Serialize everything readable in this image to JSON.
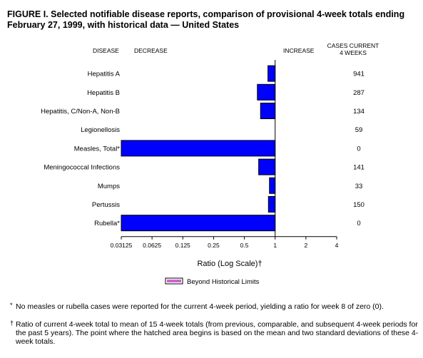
{
  "title": "FIGURE I. Selected notifiable disease reports, comparison of provisional 4-week totals ending February 27, 1999, with historical data — United States",
  "headers": {
    "disease": "DISEASE",
    "decrease": "DECREASE",
    "increase": "INCREASE",
    "cases_line1": "CASES CURRENT",
    "cases_line2": "4 WEEKS"
  },
  "legend": {
    "label": "Beyond Historical Limits",
    "swatch_color": "#cc66cc"
  },
  "footnotes": {
    "star_mark": "*",
    "star": "No measles or rubella cases were reported for the current 4-week period, yielding a ratio for week 8 of zero (0).",
    "dagger_mark": "†",
    "dagger": "Ratio of current 4-week total to mean of 15 4-week totals (from previous, comparable, and subsequent 4-week periods for the past 5 years). The point where the hatched area begins is based on the mean and two standard deviations of these 4-week totals."
  },
  "colors": {
    "bar": "#0000ff",
    "outline": "#000000"
  },
  "chart_data": {
    "type": "bar",
    "orientation": "horizontal",
    "xscale": "log2",
    "xlim": [
      0.03125,
      4
    ],
    "baseline": 1,
    "xlabel": "Ratio (Log Scale)†",
    "xticks": [
      "0.03125",
      "0.0625",
      "0.125",
      "0.25",
      "0.5",
      "1",
      "2",
      "4"
    ],
    "categories": [
      "Hepatitis A",
      "Hepatitis B",
      "Hepatitis, C/Non-A, Non-B",
      "Legionellosis",
      "Measles, Total*",
      "Meningococcal Infections",
      "Mumps",
      "Pertussis",
      "Rubella*"
    ],
    "ratios": [
      0.85,
      0.67,
      0.72,
      1.0,
      0.03125,
      0.69,
      0.88,
      0.86,
      0.03125
    ],
    "cases": [
      "941",
      "287",
      "134",
      "59",
      "0",
      "141",
      "33",
      "150",
      "0"
    ]
  }
}
